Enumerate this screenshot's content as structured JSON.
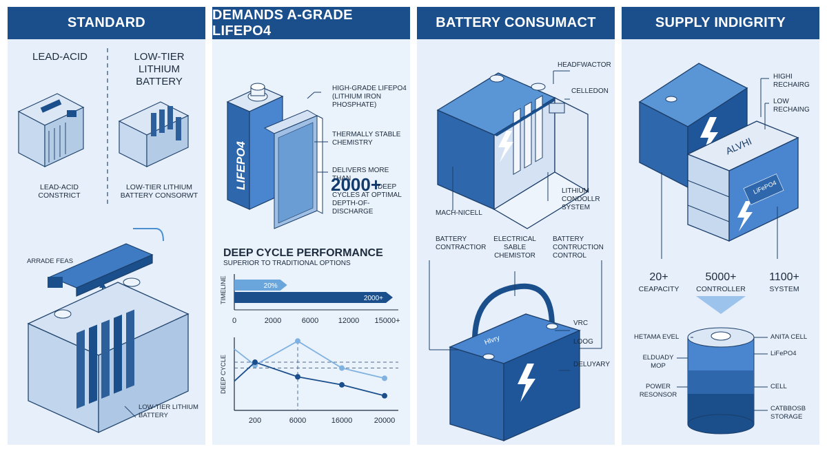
{
  "panels": [
    {
      "header": "STANDARD",
      "col_left": "LEAD-ACID",
      "col_right": "LOW-TIER\nLITHIUM BATTERY",
      "cap_left": "LEAD-ACID\nCONSTRICT",
      "cap_right": "LOW-TIER LITHIUM\nBATTERY CONSORWT",
      "upgrade_label": "ARRADE FEAS",
      "cell_caption": "LOW-TIER LITHIUM\nBATTERY"
    },
    {
      "header": "DEMANDS A-GRADE LiFePO4",
      "cell_brand": "LiFePO4",
      "callouts": [
        "HIGH-GRADE LiFePO4\n(LITHIUM IRON\nPHOSPHATE)",
        "THERMALLY STABLE\nCHEMISTRY",
        "DELIVERS MORE THAN"
      ],
      "big_number": "2000+",
      "big_number_suffix": "DEEP\nCYCLES AT OPTIMAL\nDEPTH-OF-DISCHARGE",
      "section_title": "DEEP CYCLE PERFORMANCE",
      "section_subtitle": "SUPERIOR TO TRADITIONAL OPTIONS"
    },
    {
      "header": "BATTERY CONSUMACT",
      "labels_top": [
        "HEADFWACTOR",
        "CELLEDON",
        "LITHIUM\nCONDOLLR\nSYSTEM",
        "MACH-NICELL"
      ],
      "labels_mid": [
        "BATTERY\nCONTRACTIOR",
        "ELECTRICAL\nSABLE\nCHEMISTOR",
        "BATTERY\nCONTRUCTION\nCONTROL"
      ],
      "labels_bottom": [
        "VRC",
        "LOOG",
        "DELUYARY"
      ],
      "case_brand": "Hlvry"
    },
    {
      "header": "SUPPLY INDIGRITY",
      "labels_top": [
        "HIGHI\nRECHAIRG",
        "LOW\nRECHAING"
      ],
      "module_brand": "ALVHI",
      "module_cell": "LiFePO4",
      "stats": [
        {
          "value": "20+",
          "label": "CEAPACITY"
        },
        {
          "value": "5000+",
          "label": "CONTROLLER"
        },
        {
          "value": "1100+",
          "label": "SYSTEM"
        }
      ],
      "cyl_left": [
        "HETAMA EVEL",
        "ELDUADY\nMOP",
        "POWER\nRESONSOR"
      ],
      "cyl_right": [
        "ANITA CELL",
        "LiFePO4",
        "CELL",
        "CATBBOSB\nSTORAGE"
      ]
    }
  ],
  "chart_data": [
    {
      "type": "bar",
      "ylabel": "TIMELINE",
      "categories": [
        "",
        ""
      ],
      "values": [
        5000,
        15000
      ],
      "bar_labels": [
        "20%",
        "2000+"
      ],
      "x_ticks": [
        "0",
        "2000",
        "6000",
        "12000",
        "15000+"
      ],
      "xlim": [
        0,
        15000
      ],
      "colors": [
        "#6aa6dc",
        "#1b4f8c"
      ]
    },
    {
      "type": "line",
      "ylabel": "DEEP CYCLE",
      "x_ticks": [
        "200",
        "6000",
        "16000",
        "20000"
      ],
      "series": [
        {
          "values": [
            62,
            95,
            58,
            44
          ],
          "color": "#7fb2e0"
        },
        {
          "values": [
            66,
            46,
            35,
            20
          ],
          "color": "#1b4f8c"
        }
      ],
      "lead_in": [
        84,
        40
      ],
      "ylim": [
        0,
        100
      ],
      "reference_lines": [
        66,
        58
      ]
    }
  ]
}
